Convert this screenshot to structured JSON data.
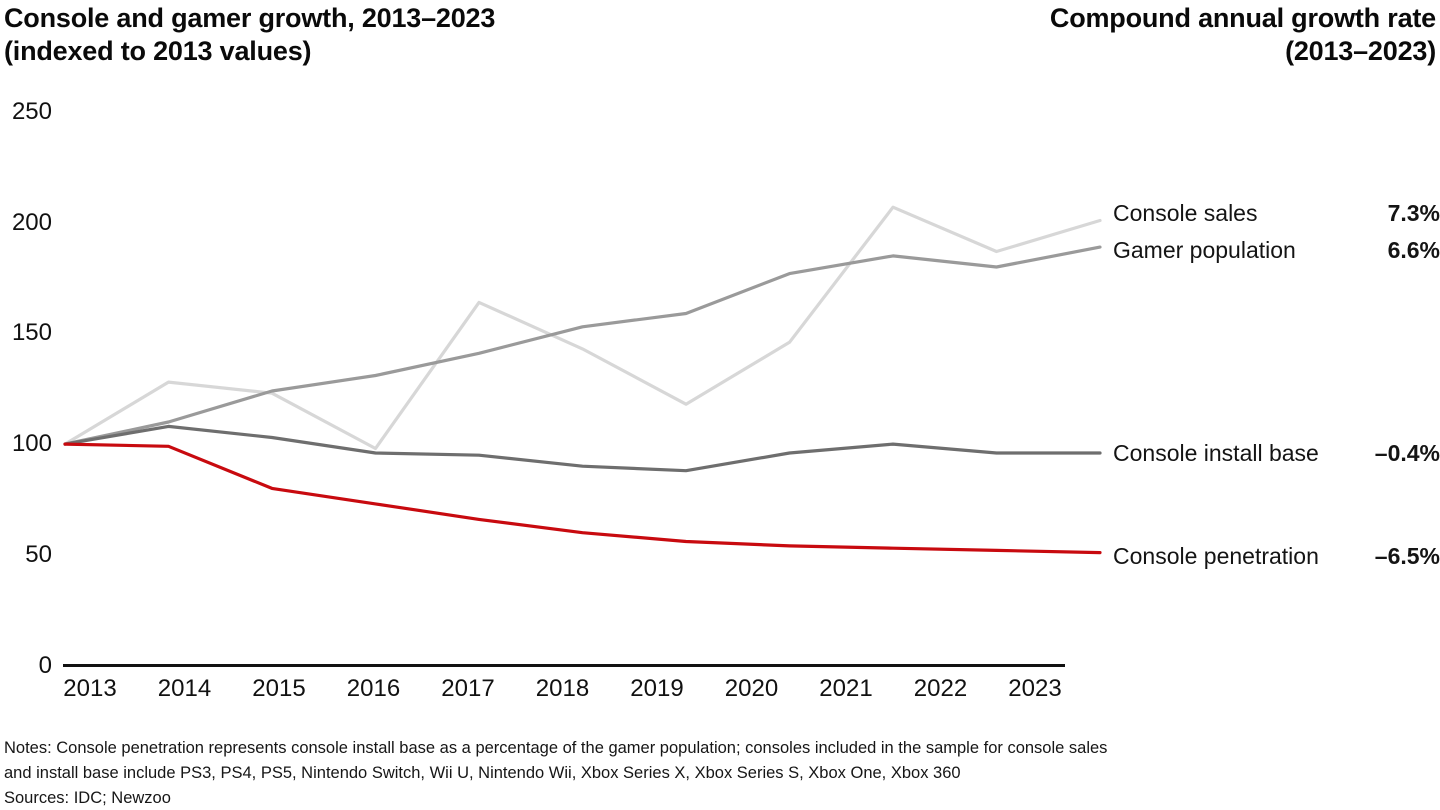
{
  "title": {
    "left_line1": "Console and gamer growth, 2013–2023",
    "left_line2": "(indexed to 2013 values)",
    "right_line1": "Compound annual growth rate",
    "right_line2": "(2013–2023)"
  },
  "chart_data": {
    "type": "line",
    "title": "Console and gamer growth, 2013–2023 (indexed to 2013 values)",
    "x": [
      "2013",
      "2014",
      "2015",
      "2016",
      "2017",
      "2018",
      "2019",
      "2020",
      "2021",
      "2022",
      "2023"
    ],
    "series": [
      {
        "name": "Console sales",
        "cagr": "7.3%",
        "color": "#d7d7d7",
        "values": [
          100,
          128,
          123,
          98,
          164,
          143,
          118,
          146,
          207,
          187,
          201
        ]
      },
      {
        "name": "Gamer population",
        "cagr": "6.6%",
        "color": "#9a9a9a",
        "values": [
          100,
          110,
          124,
          131,
          141,
          153,
          159,
          177,
          185,
          180,
          189
        ]
      },
      {
        "name": "Console install base",
        "cagr": "–0.4%",
        "color": "#6e6e6e",
        "values": [
          100,
          108,
          103,
          96,
          95,
          90,
          88,
          96,
          100,
          96,
          96
        ]
      },
      {
        "name": "Console penetration",
        "cagr": "–6.5%",
        "color": "#c80a0f",
        "values": [
          100,
          99,
          80,
          73,
          66,
          60,
          56,
          54,
          53,
          52,
          51
        ]
      }
    ],
    "ylim": [
      0,
      250
    ],
    "yticks": [
      0,
      50,
      100,
      150,
      200,
      250
    ],
    "grid": false,
    "legend_position": "right",
    "legend_title": "Compound annual growth rate (2013–2023)"
  },
  "notes": {
    "line1": "Notes: Console penetration represents console install base as a percentage of the gamer population; consoles included in the sample for console sales",
    "line2": "and install base include PS3, PS4, PS5, Nintendo Switch, Wii U, Nintendo Wii, Xbox Series X, Xbox Series S, Xbox One, Xbox 360",
    "line3": "Sources: IDC; Newzoo"
  }
}
